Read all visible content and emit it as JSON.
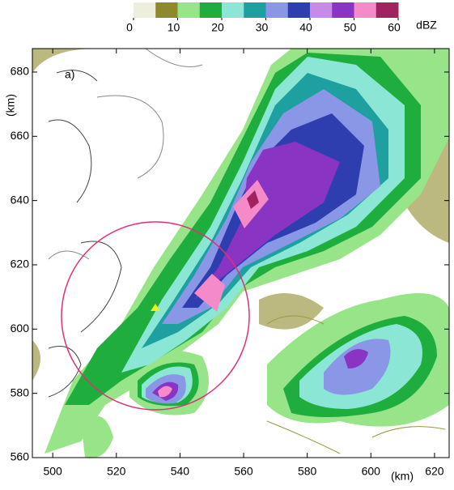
{
  "chart_data": {
    "type": "map",
    "panel_label": "a)",
    "x_label": "(km)",
    "y_label": "(km)",
    "xlim": [
      493.6,
      624.6
    ],
    "ylim": [
      560,
      687.3
    ],
    "xticks": [
      500,
      520,
      540,
      560,
      580,
      600,
      620
    ],
    "yticks": [
      560,
      580,
      600,
      620,
      640,
      660,
      680
    ],
    "colorbar": {
      "label": "dBZ",
      "lim": [
        0,
        60
      ],
      "ticks": [
        0,
        10,
        20,
        30,
        40,
        50,
        60
      ],
      "colors": [
        "#eeeedd",
        "#8e8a2c",
        "#98e488",
        "#1fae3e",
        "#8ce6d6",
        "#1ea0a0",
        "#8a96e6",
        "#2e3eae",
        "#c88ae8",
        "#8a34c4",
        "#f48ac8",
        "#a0225e"
      ]
    }
  }
}
